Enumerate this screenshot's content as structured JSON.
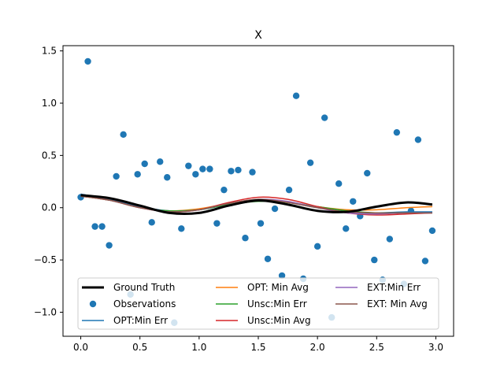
{
  "chart_data": {
    "type": "line",
    "title": "X",
    "xlabel": "",
    "ylabel": "",
    "xlim": [
      -0.15,
      3.15
    ],
    "ylim": [
      -1.23,
      1.55
    ],
    "grid": false,
    "xticks": [
      0.0,
      0.5,
      1.0,
      1.5,
      2.0,
      2.5,
      3.0
    ],
    "xtick_labels": [
      "0.0",
      "0.5",
      "1.0",
      "1.5",
      "2.0",
      "2.5",
      "3.0"
    ],
    "yticks": [
      -1.0,
      -0.5,
      0.0,
      0.5,
      1.0,
      1.5
    ],
    "ytick_labels": [
      "−1.0",
      "−0.5",
      "0.0",
      "0.5",
      "1.0",
      "1.5"
    ],
    "legend_position": "bottom-center",
    "x": [
      0.0,
      0.25,
      0.5,
      0.75,
      1.0,
      1.25,
      1.5,
      1.75,
      2.0,
      2.25,
      2.5,
      2.75,
      2.97
    ],
    "series": [
      {
        "name": "Ground Truth",
        "color": "#000000",
        "width": 3,
        "values": [
          0.12,
          0.09,
          0.02,
          -0.05,
          -0.05,
          0.02,
          0.07,
          0.03,
          -0.03,
          -0.04,
          0.01,
          0.05,
          0.03
        ]
      },
      {
        "name": "OPT:Min Err",
        "color": "#1f77b4",
        "width": 1.5,
        "values": [
          0.13,
          0.08,
          0.01,
          -0.03,
          -0.02,
          0.03,
          0.07,
          0.05,
          0.0,
          -0.04,
          -0.05,
          -0.04,
          -0.04
        ]
      },
      {
        "name": "OPT: Min Avg",
        "color": "#ff7f0e",
        "width": 1.5,
        "values": [
          0.12,
          0.07,
          0.0,
          -0.03,
          -0.01,
          0.04,
          0.07,
          0.05,
          0.01,
          -0.02,
          -0.02,
          0.0,
          0.01
        ]
      },
      {
        "name": "Unsc:Min Err",
        "color": "#2ca02c",
        "width": 1.5,
        "values": [
          0.11,
          0.07,
          0.0,
          -0.03,
          -0.02,
          0.03,
          0.06,
          0.05,
          0.01,
          -0.03,
          -0.05,
          -0.05,
          -0.05
        ]
      },
      {
        "name": "Unsc:Min Avg",
        "color": "#d62728",
        "width": 1.5,
        "values": [
          0.11,
          0.07,
          0.0,
          -0.04,
          -0.02,
          0.05,
          0.1,
          0.08,
          0.01,
          -0.05,
          -0.07,
          -0.06,
          -0.05
        ]
      },
      {
        "name": "EXT:Min Err",
        "color": "#9467bd",
        "width": 1.5,
        "values": [
          0.12,
          0.07,
          0.0,
          -0.04,
          -0.02,
          0.04,
          0.08,
          0.06,
          0.0,
          -0.05,
          -0.06,
          -0.05,
          -0.05
        ]
      },
      {
        "name": "EXT: Min Avg",
        "color": "#8c564b",
        "width": 1.5,
        "values": [
          0.11,
          0.07,
          0.0,
          -0.04,
          -0.02,
          0.04,
          0.08,
          0.05,
          0.0,
          -0.04,
          -0.05,
          -0.05,
          -0.05
        ]
      }
    ],
    "observations": {
      "name": "Observations",
      "color": "#1f77b4",
      "points": [
        [
          0.0,
          0.1
        ],
        [
          0.06,
          1.4
        ],
        [
          0.12,
          -0.18
        ],
        [
          0.18,
          -0.18
        ],
        [
          0.24,
          -0.36
        ],
        [
          0.3,
          0.3
        ],
        [
          0.36,
          0.7
        ],
        [
          0.42,
          -0.83
        ],
        [
          0.48,
          0.32
        ],
        [
          0.54,
          0.42
        ],
        [
          0.6,
          -0.14
        ],
        [
          0.67,
          0.44
        ],
        [
          0.73,
          0.29
        ],
        [
          0.79,
          -1.1
        ],
        [
          0.85,
          -0.2
        ],
        [
          0.91,
          0.4
        ],
        [
          0.97,
          0.32
        ],
        [
          1.03,
          0.37
        ],
        [
          1.09,
          0.37
        ],
        [
          1.15,
          -0.15
        ],
        [
          1.21,
          0.17
        ],
        [
          1.27,
          0.35
        ],
        [
          1.33,
          0.36
        ],
        [
          1.39,
          -0.29
        ],
        [
          1.45,
          0.34
        ],
        [
          1.52,
          -0.15
        ],
        [
          1.58,
          -0.49
        ],
        [
          1.64,
          -0.01
        ],
        [
          1.7,
          -0.65
        ],
        [
          1.76,
          0.17
        ],
        [
          1.82,
          1.07
        ],
        [
          1.88,
          -0.68
        ],
        [
          1.94,
          0.43
        ],
        [
          2.0,
          -0.37
        ],
        [
          2.06,
          0.86
        ],
        [
          2.12,
          -1.05
        ],
        [
          2.18,
          0.23
        ],
        [
          2.24,
          -0.2
        ],
        [
          2.3,
          0.06
        ],
        [
          2.36,
          -0.08
        ],
        [
          2.42,
          0.33
        ],
        [
          2.48,
          -0.5
        ],
        [
          2.55,
          -0.69
        ],
        [
          2.61,
          -0.3
        ],
        [
          2.67,
          0.72
        ],
        [
          2.73,
          -0.73
        ],
        [
          2.79,
          -0.03
        ],
        [
          2.85,
          0.65
        ],
        [
          2.91,
          -0.51
        ],
        [
          2.97,
          -0.22
        ]
      ]
    }
  }
}
